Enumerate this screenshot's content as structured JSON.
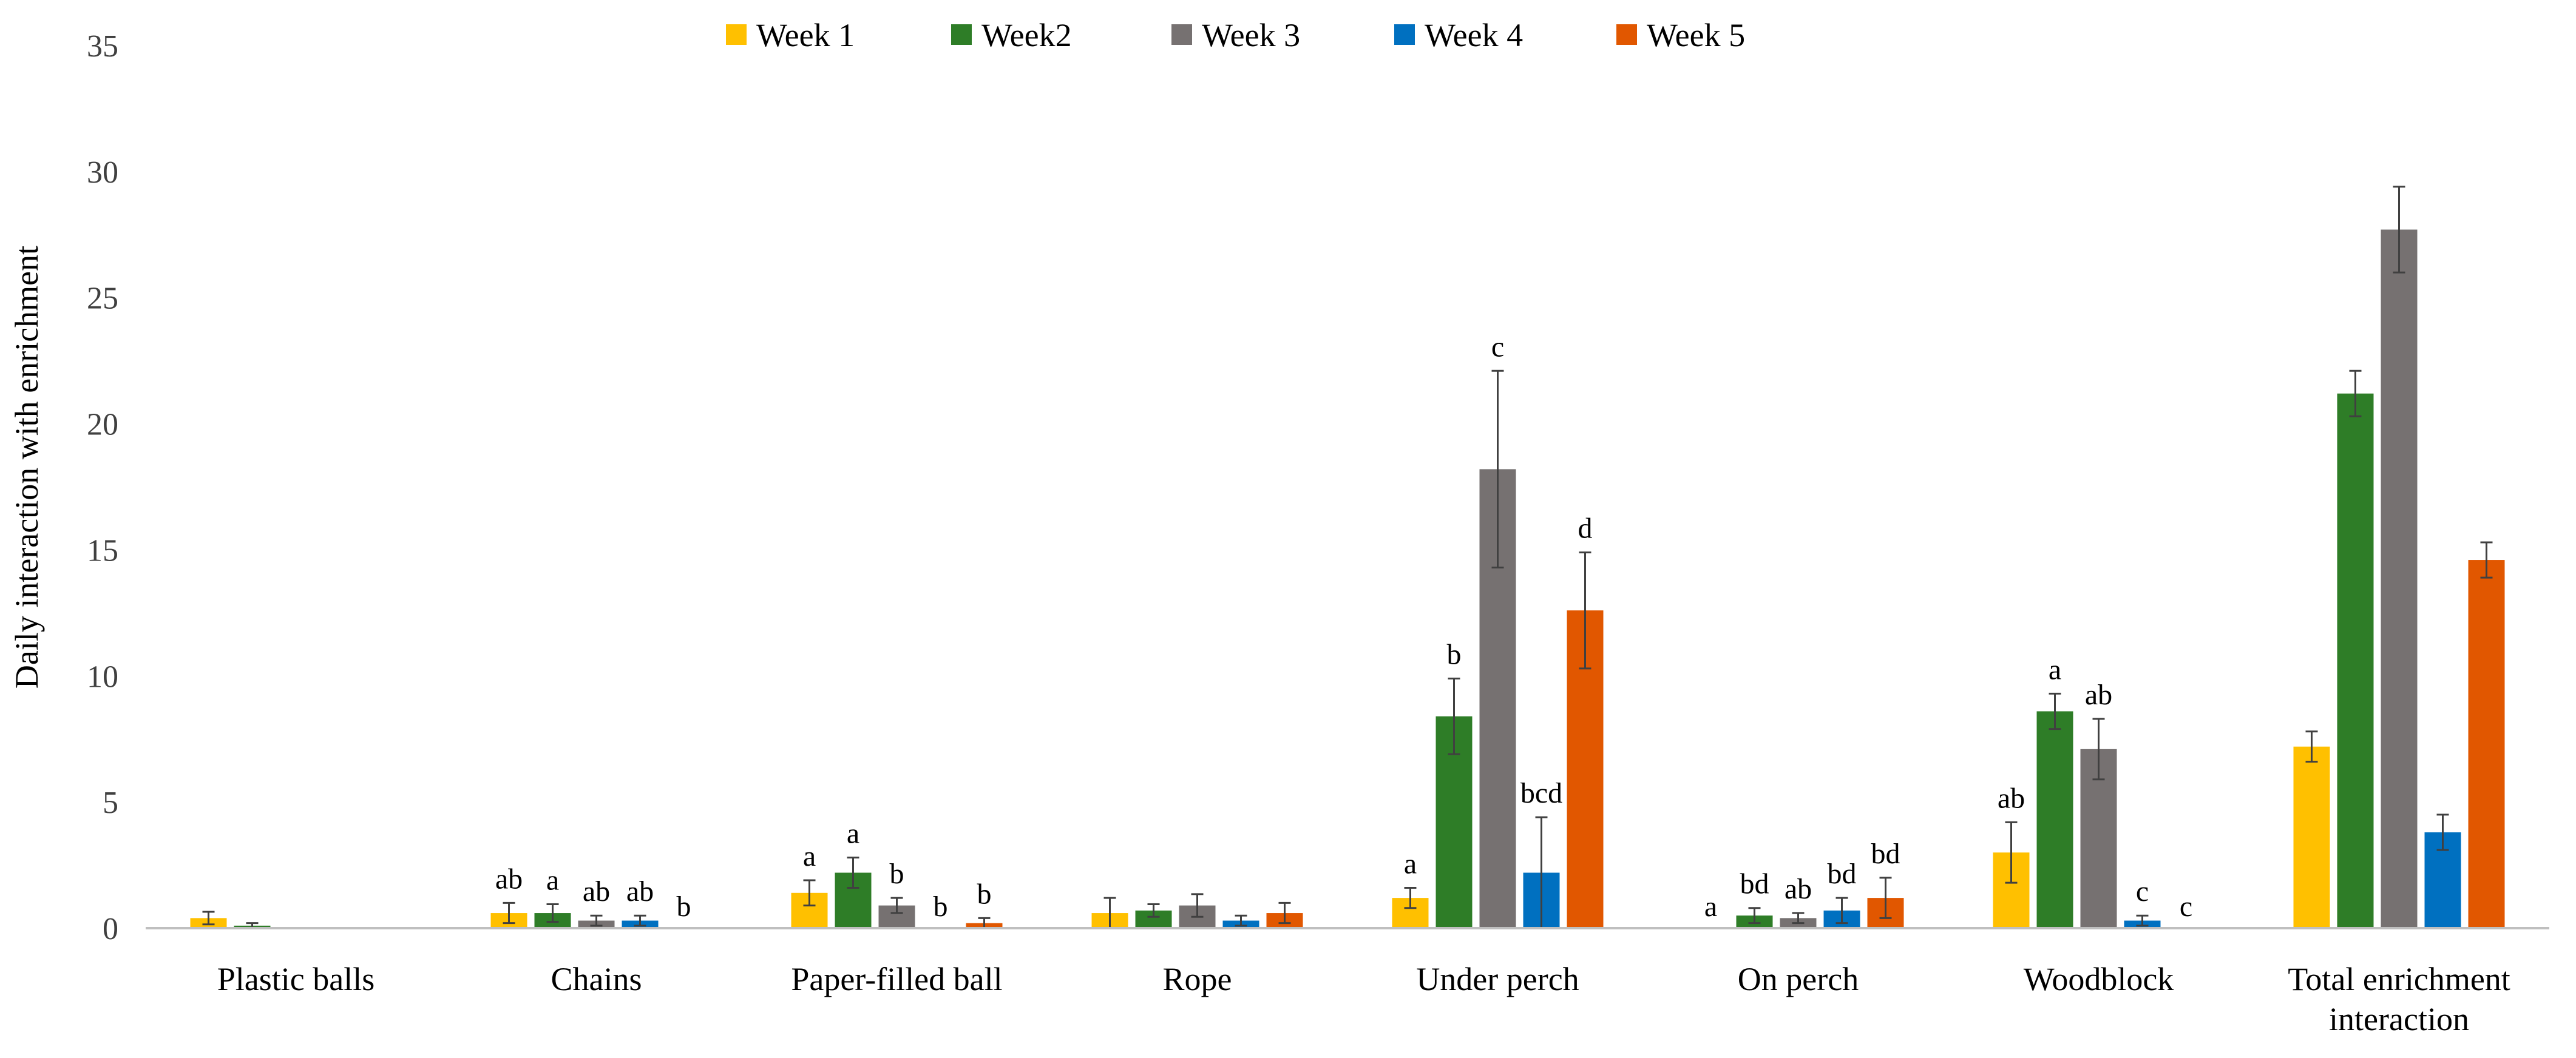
{
  "chart_data": {
    "type": "bar",
    "title": "",
    "xlabel": "",
    "ylabel": "Daily interaction with enrichment",
    "ylim": [
      0,
      35
    ],
    "yticks": [
      0,
      5,
      10,
      15,
      20,
      25,
      30,
      35
    ],
    "grid": false,
    "legend_position": "top-center",
    "categories": [
      "Plastic balls",
      "Chains",
      "Paper-filled ball",
      "Rope",
      "Under perch",
      "On perch",
      "Woodblock",
      "Total enrichment interaction"
    ],
    "series": [
      {
        "name": "Week 1",
        "color": "#FFC000",
        "values": [
          0.4,
          0.6,
          1.4,
          0.6,
          1.2,
          0,
          3.0,
          7.2
        ],
        "errors": [
          0.25,
          0.4,
          0.5,
          0.6,
          0.4,
          0,
          1.2,
          0.6
        ],
        "labels": [
          "",
          "ab",
          "a",
          "",
          "a",
          "a",
          "ab",
          ""
        ]
      },
      {
        "name": "Week2",
        "color": "#2E7D27",
        "values": [
          0.1,
          0.6,
          2.2,
          0.7,
          8.4,
          0.5,
          8.6,
          21.2
        ],
        "errors": [
          0.1,
          0.35,
          0.6,
          0.25,
          1.5,
          0.3,
          0.7,
          0.9
        ],
        "labels": [
          "",
          "a",
          "a",
          "",
          "b",
          "bd",
          "a",
          ""
        ]
      },
      {
        "name": "Week 3",
        "color": "#767171",
        "values": [
          0,
          0.3,
          0.9,
          0.9,
          18.2,
          0.4,
          7.1,
          27.7
        ],
        "errors": [
          0,
          0.2,
          0.3,
          0.45,
          3.9,
          0.2,
          1.2,
          1.7
        ],
        "labels": [
          "",
          "ab",
          "b",
          "",
          "c",
          "ab",
          "ab",
          ""
        ]
      },
      {
        "name": "Week 4",
        "color": "#0070C0",
        "values": [
          0,
          0.3,
          0,
          0.3,
          2.2,
          0.7,
          0.3,
          3.8
        ],
        "errors": [
          0,
          0.2,
          0,
          0.2,
          2.2,
          0.5,
          0.2,
          0.7
        ],
        "labels": [
          "",
          "ab",
          "b",
          "",
          "bcd",
          "bd",
          "c",
          ""
        ]
      },
      {
        "name": "Week 5",
        "color": "#E15700",
        "values": [
          0,
          0,
          0.2,
          0.6,
          12.6,
          1.2,
          0,
          14.6
        ],
        "errors": [
          0,
          0,
          0.2,
          0.4,
          2.3,
          0.8,
          0,
          0.7
        ],
        "labels": [
          "",
          "b",
          "b",
          "",
          "d",
          "bd",
          "c",
          ""
        ]
      }
    ]
  }
}
